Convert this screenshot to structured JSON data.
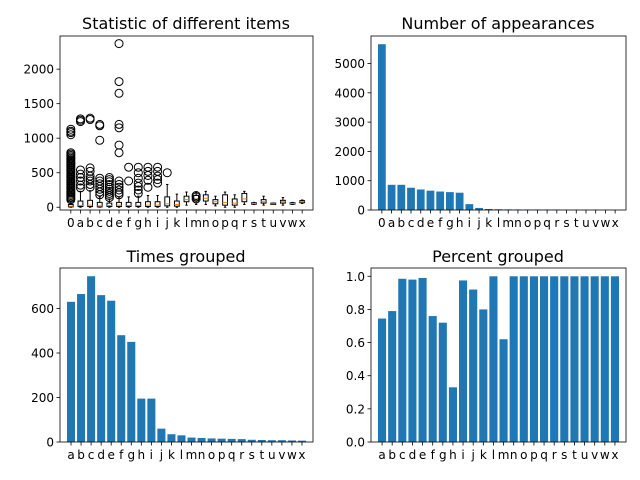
{
  "colors": {
    "bar": "#1f77b4",
    "median": "#ff7f0e",
    "outline": "#000000",
    "background": "#ffffff"
  },
  "chart_data": [
    {
      "type": "box",
      "title": "Statistic of different items",
      "categories": [
        "0",
        "a",
        "b",
        "c",
        "d",
        "e",
        "f",
        "g",
        "h",
        "i",
        "j",
        "k",
        "l",
        "m",
        "n",
        "o",
        "p",
        "q",
        "r",
        "s",
        "t",
        "u",
        "v",
        "w",
        "x"
      ],
      "ylim": [
        -40,
        2480
      ],
      "yticks": [
        0,
        500,
        1000,
        1500,
        2000
      ],
      "boxes": [
        {
          "q1": 5,
          "med": 15,
          "q3": 40,
          "whislo": 0,
          "whishi": 90,
          "fliers": [
            110,
            130,
            150,
            170,
            190,
            210,
            230,
            250,
            270,
            290,
            310,
            330,
            350,
            370,
            390,
            410,
            430,
            450,
            470,
            490,
            510,
            530,
            550,
            570,
            590,
            610,
            630,
            650,
            670,
            690,
            710,
            730,
            750,
            770,
            790,
            1050,
            1080,
            1100,
            1130
          ]
        },
        {
          "q1": 10,
          "med": 25,
          "q3": 90,
          "whislo": 0,
          "whishi": 230,
          "fliers": [
            280,
            320,
            380,
            430,
            480,
            540,
            1240,
            1260,
            1280
          ]
        },
        {
          "q1": 10,
          "med": 30,
          "q3": 100,
          "whislo": 0,
          "whishi": 240,
          "fliers": [
            290,
            330,
            380,
            410,
            450,
            520,
            570,
            1270,
            1290
          ]
        },
        {
          "q1": 5,
          "med": 20,
          "q3": 70,
          "whislo": 0,
          "whishi": 150,
          "fliers": [
            180,
            220,
            260,
            300,
            340,
            380,
            420,
            970,
            1180,
            1200
          ]
        },
        {
          "q1": 10,
          "med": 25,
          "q3": 60,
          "whislo": 0,
          "whishi": 120,
          "fliers": [
            140,
            170,
            200,
            230,
            260,
            290,
            330,
            370,
            400,
            430
          ]
        },
        {
          "q1": 10,
          "med": 30,
          "q3": 70,
          "whislo": 0,
          "whishi": 150,
          "fliers": [
            180,
            210,
            250,
            290,
            330,
            380,
            790,
            900,
            1150,
            1200,
            1650,
            1820,
            2370
          ]
        },
        {
          "q1": 10,
          "med": 25,
          "q3": 70,
          "whislo": 0,
          "whishi": 150,
          "fliers": [
            380,
            580
          ]
        },
        {
          "q1": 10,
          "med": 25,
          "q3": 70,
          "whislo": 0,
          "whishi": 160,
          "fliers": [
            200,
            250,
            300,
            350,
            420,
            500,
            580
          ]
        },
        {
          "q1": 10,
          "med": 30,
          "q3": 80,
          "whislo": 0,
          "whishi": 170,
          "fliers": [
            290,
            390,
            460,
            520,
            580
          ]
        },
        {
          "q1": 10,
          "med": 30,
          "q3": 80,
          "whislo": 0,
          "whishi": 170,
          "fliers": [
            350,
            400,
            450,
            520,
            580
          ]
        },
        {
          "q1": 20,
          "med": 50,
          "q3": 150,
          "whislo": 0,
          "whishi": 330,
          "fliers": [
            500
          ]
        },
        {
          "q1": 15,
          "med": 40,
          "q3": 90,
          "whislo": 0,
          "whishi": 190,
          "fliers": []
        },
        {
          "q1": 80,
          "med": 110,
          "q3": 160,
          "whislo": 30,
          "whishi": 220,
          "fliers": []
        },
        {
          "q1": 90,
          "med": 120,
          "q3": 170,
          "whislo": 40,
          "whishi": 220,
          "fliers": [
            120,
            150,
            170
          ]
        },
        {
          "q1": 90,
          "med": 130,
          "q3": 180,
          "whislo": 40,
          "whishi": 230,
          "fliers": []
        },
        {
          "q1": 50,
          "med": 80,
          "q3": 110,
          "whislo": 20,
          "whishi": 160,
          "fliers": []
        },
        {
          "q1": 30,
          "med": 70,
          "q3": 180,
          "whislo": 0,
          "whishi": 220,
          "fliers": []
        },
        {
          "q1": 30,
          "med": 60,
          "q3": 120,
          "whislo": 0,
          "whishi": 180,
          "fliers": []
        },
        {
          "q1": 80,
          "med": 120,
          "q3": 200,
          "whislo": 40,
          "whishi": 230,
          "fliers": []
        },
        {
          "q1": 45,
          "med": 55,
          "q3": 65,
          "whislo": 40,
          "whishi": 70,
          "fliers": []
        },
        {
          "q1": 60,
          "med": 80,
          "q3": 110,
          "whislo": 30,
          "whishi": 160,
          "fliers": []
        },
        {
          "q1": 40,
          "med": 50,
          "q3": 60,
          "whislo": 40,
          "whishi": 60,
          "fliers": []
        },
        {
          "q1": 60,
          "med": 80,
          "q3": 100,
          "whislo": 30,
          "whishi": 140,
          "fliers": []
        },
        {
          "q1": 45,
          "med": 55,
          "q3": 65,
          "whislo": 40,
          "whishi": 70,
          "fliers": []
        },
        {
          "q1": 65,
          "med": 80,
          "q3": 95,
          "whislo": 55,
          "whishi": 105,
          "fliers": []
        }
      ]
    },
    {
      "type": "bar",
      "title": "Number of appearances",
      "categories": [
        "0",
        "a",
        "b",
        "c",
        "d",
        "e",
        "f",
        "g",
        "h",
        "i",
        "j",
        "k",
        "l",
        "m",
        "n",
        "o",
        "p",
        "q",
        "r",
        "s",
        "t",
        "u",
        "v",
        "w",
        "x"
      ],
      "values": [
        5660,
        860,
        860,
        760,
        700,
        660,
        630,
        610,
        590,
        200,
        70,
        35,
        25,
        20,
        18,
        16,
        15,
        14,
        13,
        5,
        4,
        3,
        3,
        2,
        2
      ],
      "ylim": [
        0,
        5940
      ],
      "yticks": [
        0,
        1000,
        2000,
        3000,
        4000,
        5000
      ]
    },
    {
      "type": "bar",
      "title": "Times grouped",
      "categories": [
        "a",
        "b",
        "c",
        "d",
        "e",
        "f",
        "g",
        "h",
        "i",
        "j",
        "k",
        "l",
        "m",
        "n",
        "o",
        "p",
        "q",
        "r",
        "s",
        "t",
        "u",
        "v",
        "w",
        "x"
      ],
      "values": [
        630,
        665,
        745,
        660,
        635,
        480,
        450,
        195,
        195,
        60,
        35,
        30,
        20,
        18,
        16,
        15,
        14,
        13,
        10,
        9,
        8,
        8,
        7,
        6
      ],
      "ylim": [
        0,
        782
      ],
      "yticks": [
        0,
        200,
        400,
        600
      ]
    },
    {
      "type": "bar",
      "title": "Percent grouped",
      "categories": [
        "a",
        "b",
        "c",
        "d",
        "e",
        "f",
        "g",
        "h",
        "i",
        "j",
        "k",
        "l",
        "m",
        "n",
        "o",
        "p",
        "q",
        "r",
        "s",
        "t",
        "u",
        "v",
        "w",
        "x"
      ],
      "values": [
        0.745,
        0.79,
        0.985,
        0.98,
        0.99,
        0.76,
        0.72,
        0.33,
        0.975,
        0.92,
        0.8,
        1.0,
        0.62,
        1.0,
        1.0,
        1.0,
        1.0,
        1.0,
        1.0,
        1.0,
        1.0,
        1.0,
        1.0,
        1.0
      ],
      "ylim": [
        0,
        1.05
      ],
      "yticks": [
        0.0,
        0.2,
        0.4,
        0.6,
        0.8,
        1.0
      ]
    }
  ]
}
